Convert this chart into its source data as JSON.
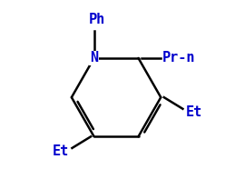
{
  "background": "#ffffff",
  "ring_color": "#000000",
  "label_color": "#0000cd",
  "font_family": "DejaVu Sans Mono",
  "font_size": 11,
  "font_weight": "bold",
  "N": [
    0.0,
    0.0
  ],
  "C2": [
    0.85,
    0.0
  ],
  "C3": [
    1.28,
    -0.75
  ],
  "C4": [
    0.85,
    -1.5
  ],
  "C5": [
    0.0,
    -1.5
  ],
  "C6": [
    -0.43,
    -0.75
  ],
  "xlim": [
    -1.6,
    2.5
  ],
  "ylim": [
    -2.3,
    1.1
  ],
  "figsize": [
    2.59,
    1.97
  ],
  "dpi": 100
}
